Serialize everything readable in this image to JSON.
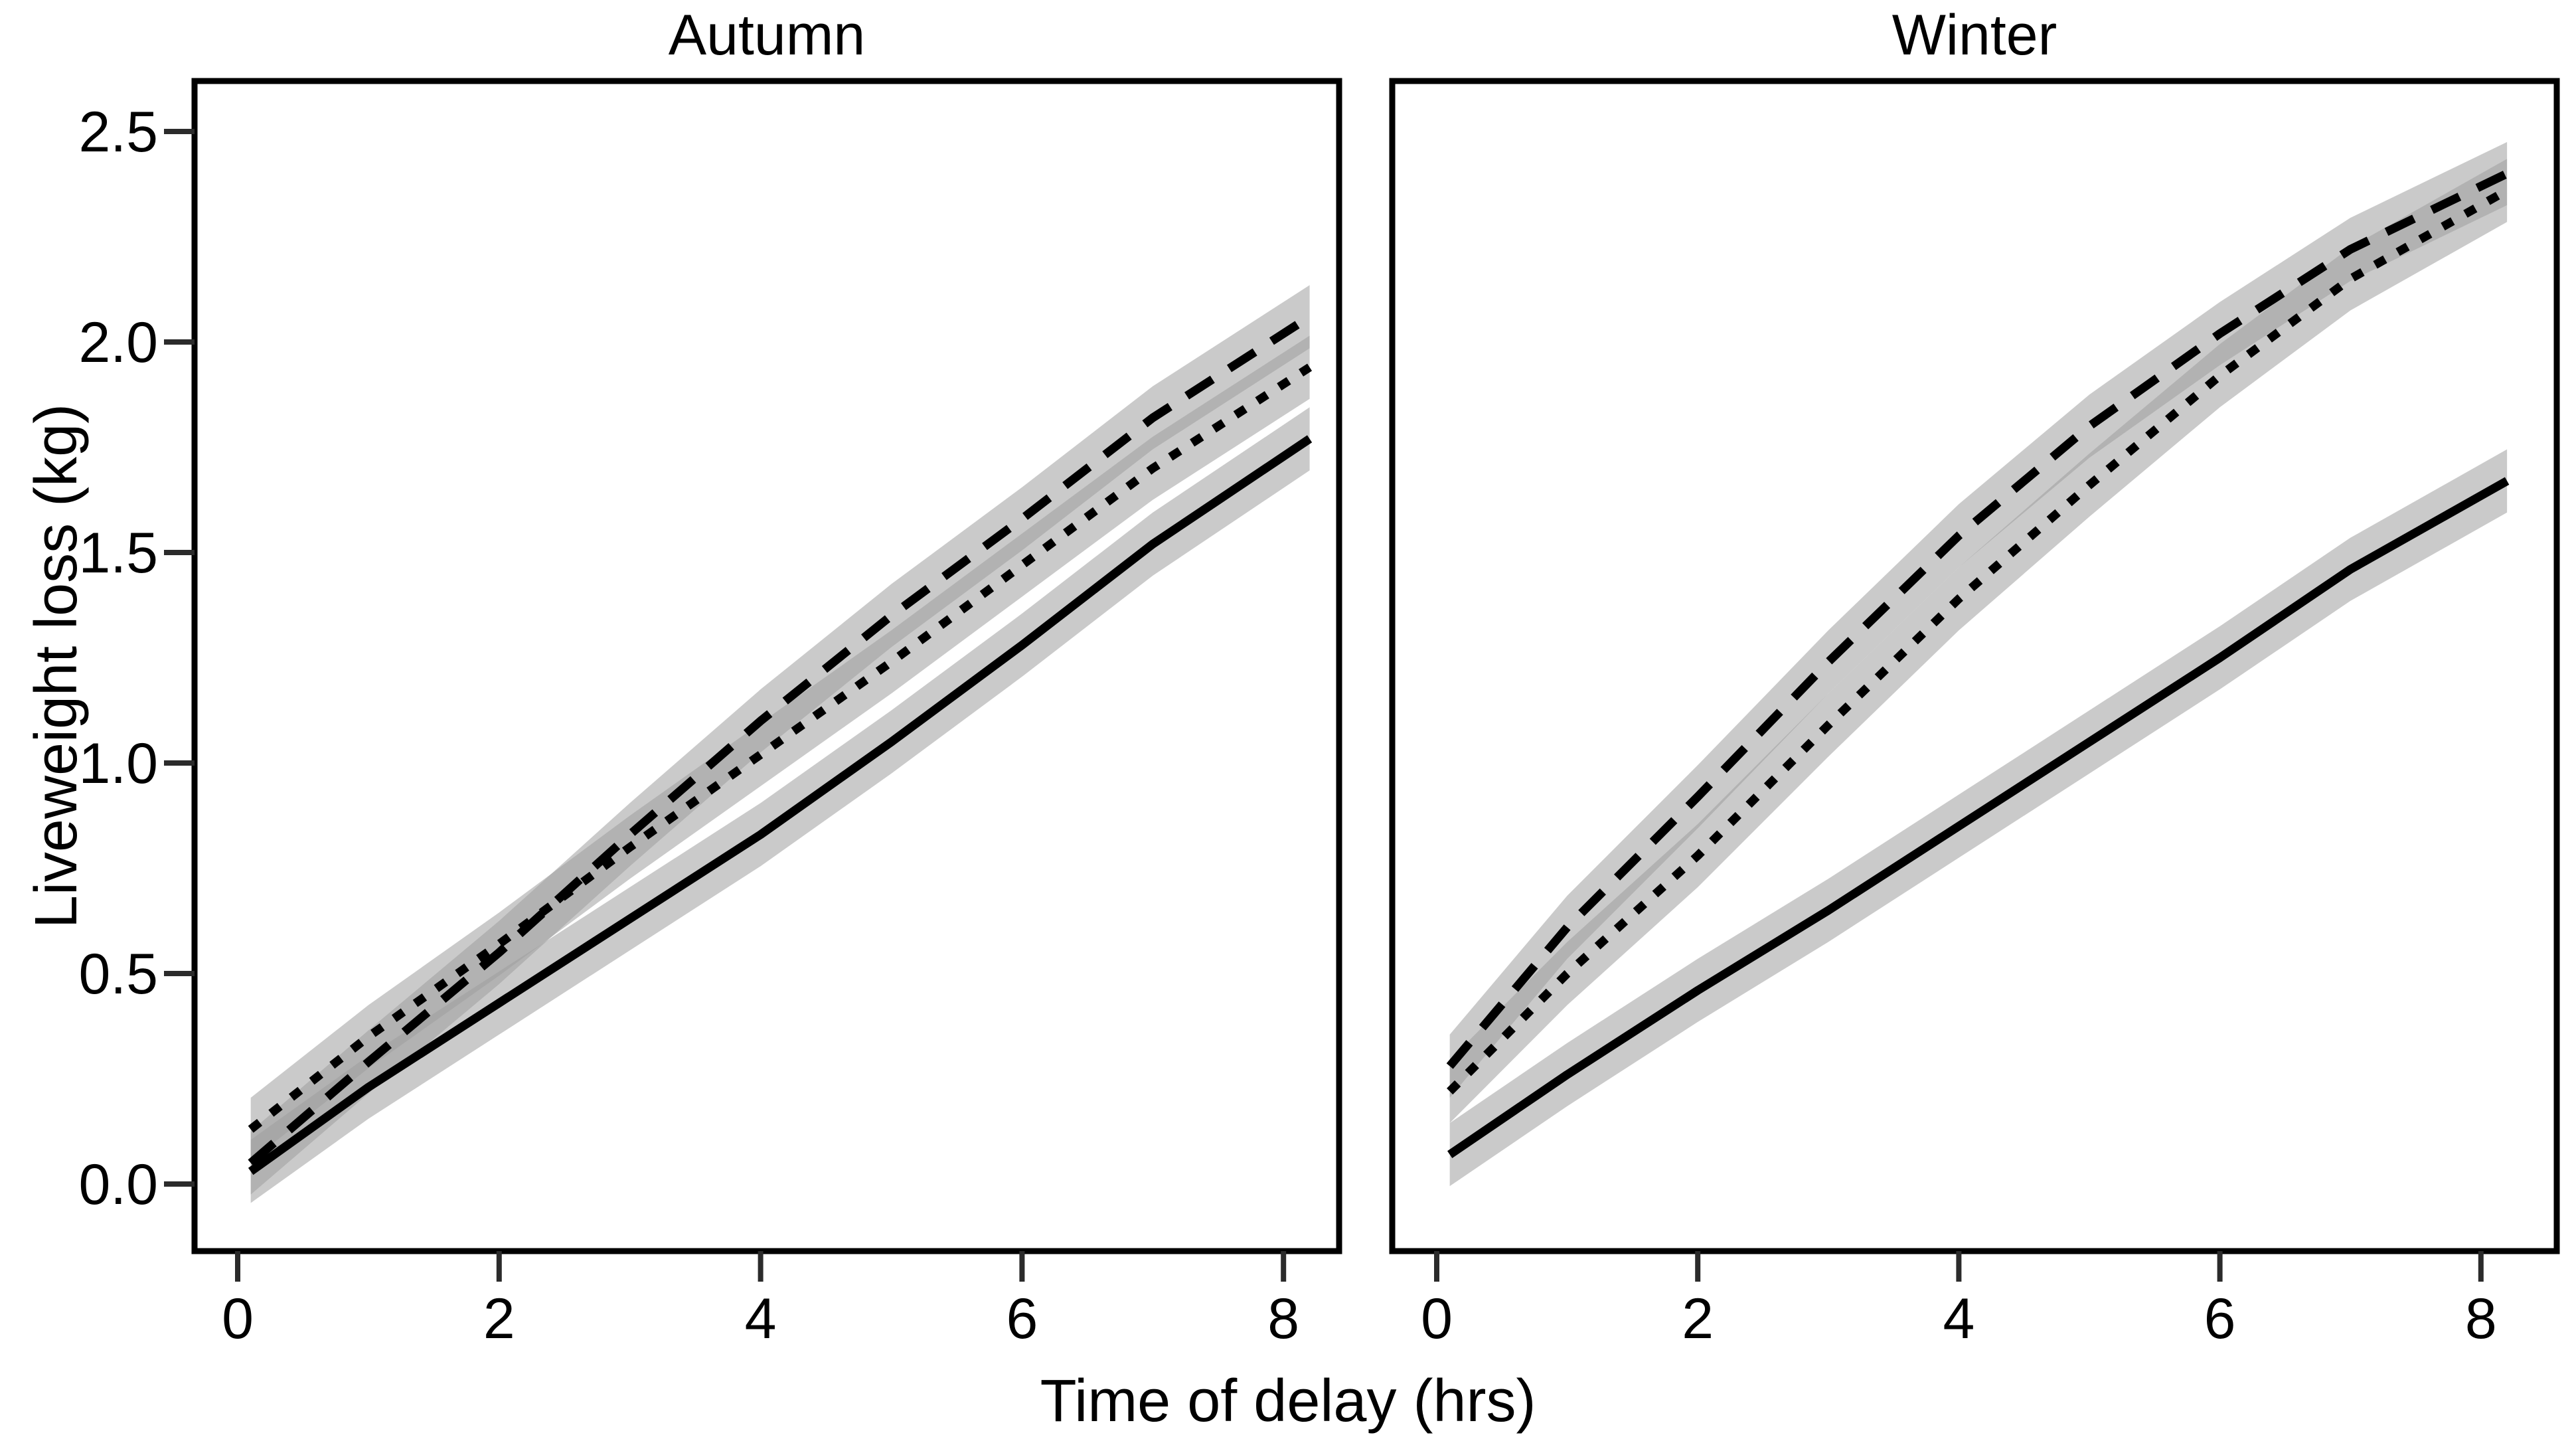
{
  "figure": {
    "background": "#ffffff",
    "panel_border_color": "#000000",
    "tick_color": "#2b2b2b",
    "text_color": "#000000",
    "ribbon_color": "#9e9e9e",
    "ribbon_opacity": 0.55,
    "line_color": "#000000"
  },
  "chart_data": {
    "type": "line",
    "xlabel": "Time of delay (hrs)",
    "ylabel": "Liveweight loss (kg)",
    "x": [
      0.1,
      1,
      2,
      3,
      4,
      5,
      6,
      7,
      8.2
    ],
    "x_ticks": [
      0,
      2,
      4,
      6,
      8
    ],
    "y_ticks": [
      0.0,
      0.5,
      1.0,
      1.5,
      2.0,
      2.5
    ],
    "y_tick_labels": [
      "0.0",
      "0.5",
      "1.0",
      "1.5",
      "2.0",
      "2.5"
    ],
    "xlim": [
      -0.33,
      8.58
    ],
    "ylim": [
      -0.16,
      2.62
    ],
    "grid": "off",
    "legend_position": "none",
    "ci_halfwidth": 0.075,
    "facets": [
      {
        "title": "Autumn",
        "series": [
          {
            "name": "solid-line",
            "linetype": "solid",
            "values": [
              0.03,
              0.23,
              0.43,
              0.63,
              0.83,
              1.05,
              1.28,
              1.52,
              1.77
            ]
          },
          {
            "name": "dashed-line",
            "linetype": "dashed",
            "values": [
              0.05,
              0.29,
              0.55,
              0.83,
              1.1,
              1.35,
              1.58,
              1.82,
              2.06
            ]
          },
          {
            "name": "dotted-line",
            "linetype": "dotted",
            "values": [
              0.13,
              0.35,
              0.57,
              0.8,
              1.02,
              1.24,
              1.47,
              1.7,
              1.94
            ]
          }
        ]
      },
      {
        "title": "Winter",
        "series": [
          {
            "name": "solid-line",
            "linetype": "solid",
            "values": [
              0.07,
              0.26,
              0.46,
              0.65,
              0.85,
              1.05,
              1.25,
              1.46,
              1.67
            ]
          },
          {
            "name": "dashed-line",
            "linetype": "dashed",
            "values": [
              0.28,
              0.61,
              0.92,
              1.24,
              1.54,
              1.8,
              2.02,
              2.22,
              2.4
            ]
          },
          {
            "name": "dotted-line",
            "linetype": "dotted",
            "values": [
              0.22,
              0.5,
              0.78,
              1.09,
              1.39,
              1.66,
              1.92,
              2.15,
              2.36
            ]
          }
        ]
      }
    ]
  }
}
